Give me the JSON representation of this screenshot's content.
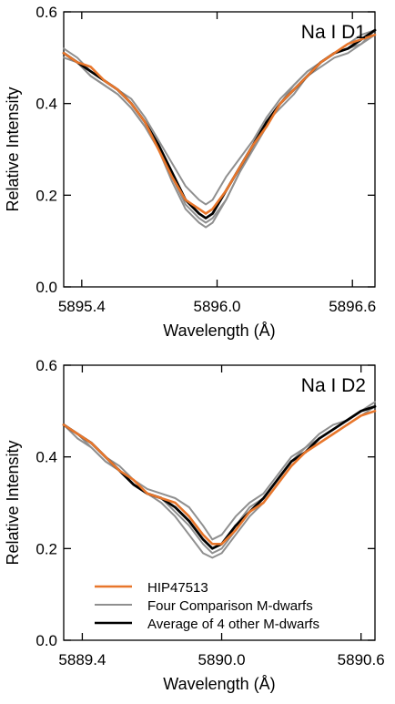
{
  "colors": {
    "target": "#e8762b",
    "comparison": "#8f8f8f",
    "average": "#000000"
  },
  "chart_data": [
    {
      "type": "line",
      "panel_label": "Na I D1",
      "xlabel": "Wavelength (Å)",
      "ylabel": "Relative Intensity",
      "xlim": [
        5895.32,
        5896.7
      ],
      "ylim": [
        0.0,
        0.6
      ],
      "xticks": [
        5895.4,
        5896.0,
        5896.6
      ],
      "xtick_labels": [
        "5895.4",
        "5896.0",
        "5896.6"
      ],
      "yticks": [
        0.0,
        0.2,
        0.4,
        0.6
      ],
      "ytick_labels": [
        "0.0",
        "0.2",
        "0.4",
        "0.6"
      ],
      "x": [
        5895.32,
        5895.38,
        5895.44,
        5895.5,
        5895.56,
        5895.62,
        5895.68,
        5895.74,
        5895.8,
        5895.86,
        5895.92,
        5895.95,
        5895.98,
        5896.04,
        5896.1,
        5896.16,
        5896.22,
        5896.28,
        5896.34,
        5896.4,
        5896.46,
        5896.52,
        5896.58,
        5896.64,
        5896.7
      ],
      "series": [
        {
          "role": "comparison",
          "values": [
            0.51,
            0.49,
            0.47,
            0.45,
            0.43,
            0.4,
            0.36,
            0.31,
            0.25,
            0.19,
            0.16,
            0.15,
            0.16,
            0.21,
            0.26,
            0.31,
            0.36,
            0.4,
            0.44,
            0.47,
            0.49,
            0.51,
            0.52,
            0.53,
            0.55
          ]
        },
        {
          "role": "comparison",
          "values": [
            0.5,
            0.49,
            0.46,
            0.44,
            0.42,
            0.39,
            0.35,
            0.3,
            0.24,
            0.18,
            0.15,
            0.14,
            0.15,
            0.19,
            0.25,
            0.3,
            0.35,
            0.4,
            0.43,
            0.46,
            0.48,
            0.5,
            0.51,
            0.53,
            0.56
          ]
        },
        {
          "role": "comparison",
          "values": [
            0.52,
            0.5,
            0.47,
            0.45,
            0.43,
            0.41,
            0.37,
            0.32,
            0.27,
            0.22,
            0.19,
            0.18,
            0.19,
            0.24,
            0.28,
            0.32,
            0.37,
            0.41,
            0.44,
            0.47,
            0.49,
            0.51,
            0.53,
            0.55,
            0.56
          ]
        },
        {
          "role": "comparison",
          "values": [
            0.51,
            0.49,
            0.46,
            0.44,
            0.42,
            0.39,
            0.35,
            0.3,
            0.23,
            0.17,
            0.14,
            0.13,
            0.14,
            0.19,
            0.25,
            0.31,
            0.36,
            0.39,
            0.42,
            0.46,
            0.49,
            0.51,
            0.53,
            0.54,
            0.56
          ]
        },
        {
          "role": "average",
          "name": "Average of 4 other M-dwarfs",
          "values": [
            0.51,
            0.49,
            0.47,
            0.45,
            0.43,
            0.4,
            0.36,
            0.31,
            0.25,
            0.19,
            0.16,
            0.15,
            0.16,
            0.21,
            0.26,
            0.31,
            0.36,
            0.4,
            0.43,
            0.46,
            0.49,
            0.51,
            0.52,
            0.54,
            0.56
          ]
        },
        {
          "role": "target",
          "name": "HIP47513",
          "values": [
            0.51,
            0.49,
            0.48,
            0.45,
            0.43,
            0.4,
            0.36,
            0.3,
            0.24,
            0.19,
            0.17,
            0.16,
            0.17,
            0.21,
            0.26,
            0.31,
            0.35,
            0.4,
            0.43,
            0.46,
            0.49,
            0.51,
            0.53,
            0.54,
            0.55
          ]
        }
      ]
    },
    {
      "type": "line",
      "panel_label": "Na I D2",
      "xlabel": "Wavelength (Å)",
      "ylabel": "Relative Intensity",
      "xlim": [
        5889.32,
        5890.66
      ],
      "ylim": [
        0.0,
        0.6
      ],
      "xticks": [
        5889.4,
        5890.0,
        5890.6
      ],
      "xtick_labels": [
        "5889.4",
        "5890.0",
        "5890.6"
      ],
      "yticks": [
        0.0,
        0.2,
        0.4,
        0.6
      ],
      "ytick_labels": [
        "0.0",
        "0.2",
        "0.4",
        "0.6"
      ],
      "legend": {
        "position": "lower-left",
        "entries": [
          {
            "label": "HIP47513",
            "role": "target"
          },
          {
            "label": "Four Comparison M-dwarfs",
            "role": "comparison"
          },
          {
            "label": "Average of 4 other M-dwarfs",
            "role": "average"
          }
        ]
      },
      "x": [
        5889.32,
        5889.38,
        5889.44,
        5889.5,
        5889.56,
        5889.62,
        5889.68,
        5889.74,
        5889.8,
        5889.86,
        5889.92,
        5889.96,
        5890.0,
        5890.06,
        5890.12,
        5890.18,
        5890.24,
        5890.3,
        5890.36,
        5890.42,
        5890.48,
        5890.54,
        5890.6,
        5890.66
      ],
      "series": [
        {
          "role": "comparison",
          "values": [
            0.47,
            0.45,
            0.42,
            0.39,
            0.37,
            0.34,
            0.32,
            0.31,
            0.29,
            0.26,
            0.22,
            0.2,
            0.21,
            0.25,
            0.29,
            0.31,
            0.35,
            0.39,
            0.42,
            0.44,
            0.46,
            0.48,
            0.5,
            0.51
          ]
        },
        {
          "role": "comparison",
          "values": [
            0.47,
            0.45,
            0.43,
            0.4,
            0.37,
            0.34,
            0.32,
            0.3,
            0.27,
            0.23,
            0.19,
            0.18,
            0.19,
            0.23,
            0.27,
            0.3,
            0.34,
            0.38,
            0.41,
            0.44,
            0.46,
            0.48,
            0.5,
            0.51
          ]
        },
        {
          "role": "comparison",
          "values": [
            0.47,
            0.45,
            0.43,
            0.4,
            0.38,
            0.35,
            0.33,
            0.32,
            0.31,
            0.29,
            0.25,
            0.22,
            0.23,
            0.27,
            0.3,
            0.32,
            0.36,
            0.4,
            0.42,
            0.45,
            0.47,
            0.48,
            0.5,
            0.52
          ]
        },
        {
          "role": "comparison",
          "values": [
            0.47,
            0.44,
            0.42,
            0.39,
            0.37,
            0.34,
            0.32,
            0.31,
            0.28,
            0.25,
            0.21,
            0.19,
            0.2,
            0.24,
            0.28,
            0.3,
            0.34,
            0.38,
            0.41,
            0.43,
            0.45,
            0.47,
            0.49,
            0.51
          ]
        },
        {
          "role": "average",
          "name": "Average of 4 other M-dwarfs",
          "values": [
            0.47,
            0.45,
            0.43,
            0.4,
            0.37,
            0.34,
            0.32,
            0.31,
            0.29,
            0.26,
            0.22,
            0.2,
            0.21,
            0.25,
            0.28,
            0.31,
            0.35,
            0.39,
            0.41,
            0.44,
            0.46,
            0.48,
            0.5,
            0.51
          ]
        },
        {
          "role": "target",
          "name": "HIP47513",
          "values": [
            0.47,
            0.45,
            0.43,
            0.4,
            0.37,
            0.35,
            0.32,
            0.31,
            0.3,
            0.27,
            0.23,
            0.21,
            0.21,
            0.24,
            0.28,
            0.3,
            0.34,
            0.38,
            0.41,
            0.43,
            0.45,
            0.47,
            0.49,
            0.5
          ]
        }
      ]
    }
  ]
}
